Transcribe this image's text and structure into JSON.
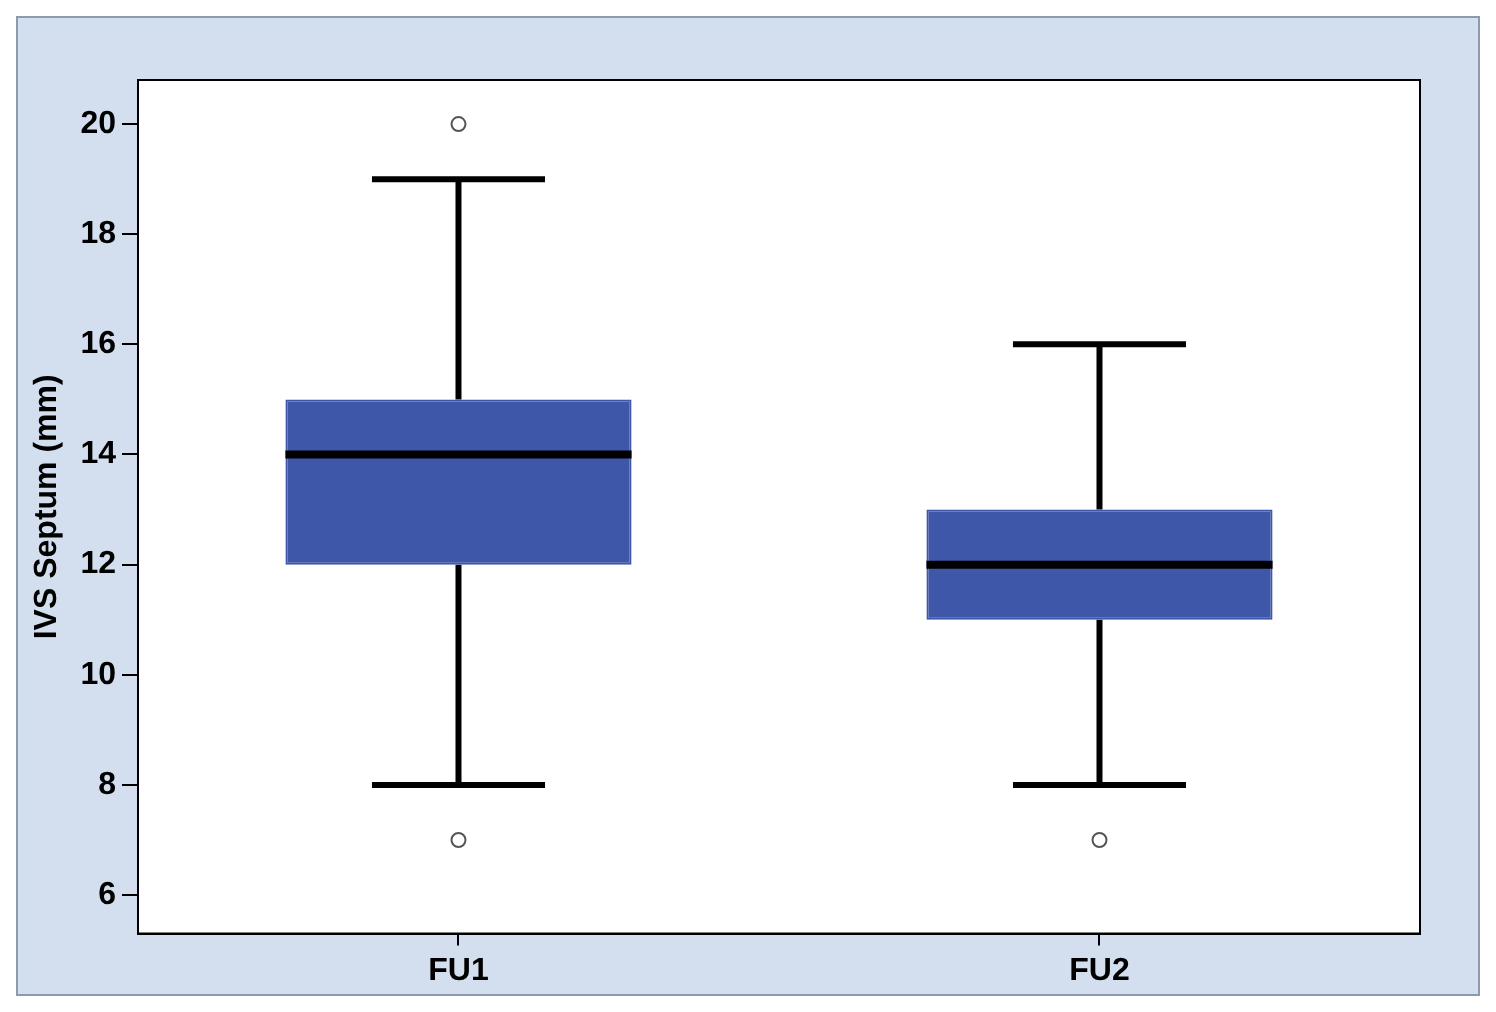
{
  "chart_data": {
    "type": "box",
    "ylabel": "IVS Septum (mm)",
    "categories": [
      "FU1",
      "FU2"
    ],
    "color": "#3e57a8",
    "boxes": [
      {
        "low": 8,
        "q1": 12,
        "median": 14,
        "q3": 15,
        "high": 19,
        "outliers": [
          20,
          7
        ]
      },
      {
        "low": 8,
        "q1": 11,
        "median": 12,
        "q3": 13,
        "high": 16,
        "outliers": [
          7
        ]
      }
    ],
    "ylim": [
      5.3,
      20.8
    ],
    "yticks": [
      6,
      8,
      10,
      12,
      14,
      16,
      18,
      20
    ],
    "grid": false,
    "legend": false
  }
}
